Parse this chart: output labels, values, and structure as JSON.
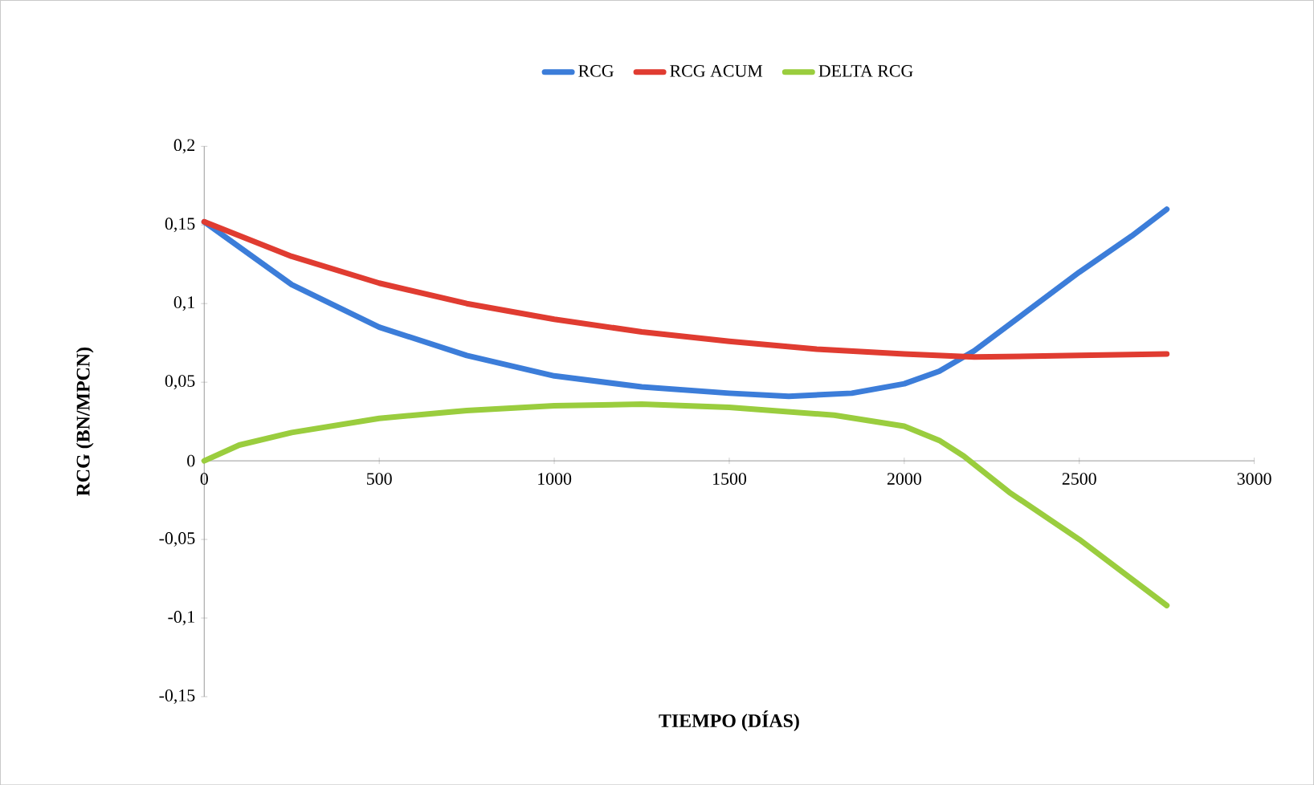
{
  "chart_data": {
    "type": "line",
    "xlabel": "TIEMPO (DÍAS)",
    "ylabel": "RCG (BN/MPCN)",
    "legend": "top",
    "marker": "none",
    "line_style": "solid",
    "grid": false,
    "xlim": [
      0,
      3000
    ],
    "xticks": [
      0,
      500,
      1000,
      1500,
      2000,
      2500,
      3000
    ],
    "ylim": [
      -0.15,
      0.2
    ],
    "yticks": [
      {
        "value": -0.15,
        "label": "-0,15"
      },
      {
        "value": -0.1,
        "label": "-0,1"
      },
      {
        "value": -0.05,
        "label": "-0,05"
      },
      {
        "value": 0,
        "label": "0"
      },
      {
        "value": 0.05,
        "label": "0,05"
      },
      {
        "value": 0.1,
        "label": "0,1"
      },
      {
        "value": 0.15,
        "label": "0,15"
      },
      {
        "value": 0.2,
        "label": "0,2"
      }
    ],
    "series": [
      {
        "name": "RCG",
        "color": "#3c7dd9",
        "x": [
          0,
          250,
          500,
          750,
          1000,
          1250,
          1500,
          1670,
          1850,
          2000,
          2100,
          2200,
          2350,
          2500,
          2650,
          2750
        ],
        "values": [
          0.152,
          0.112,
          0.085,
          0.067,
          0.054,
          0.047,
          0.043,
          0.041,
          0.043,
          0.049,
          0.057,
          0.07,
          0.095,
          0.12,
          0.143,
          0.16
        ]
      },
      {
        "name": "RCG ACUM",
        "color": "#e03c31",
        "x": [
          0,
          250,
          500,
          750,
          1000,
          1250,
          1500,
          1750,
          2000,
          2200,
          2500,
          2750
        ],
        "values": [
          0.152,
          0.13,
          0.113,
          0.1,
          0.09,
          0.082,
          0.076,
          0.071,
          0.068,
          0.066,
          0.067,
          0.068
        ]
      },
      {
        "name": "DELTA RCG",
        "color": "#9acd3e",
        "x": [
          0,
          100,
          250,
          500,
          750,
          1000,
          1250,
          1500,
          1800,
          2000,
          2100,
          2170,
          2300,
          2500,
          2750
        ],
        "values": [
          0,
          0.01,
          0.018,
          0.027,
          0.032,
          0.035,
          0.036,
          0.034,
          0.029,
          0.022,
          0.013,
          0.003,
          -0.02,
          -0.05,
          -0.092
        ]
      }
    ]
  }
}
